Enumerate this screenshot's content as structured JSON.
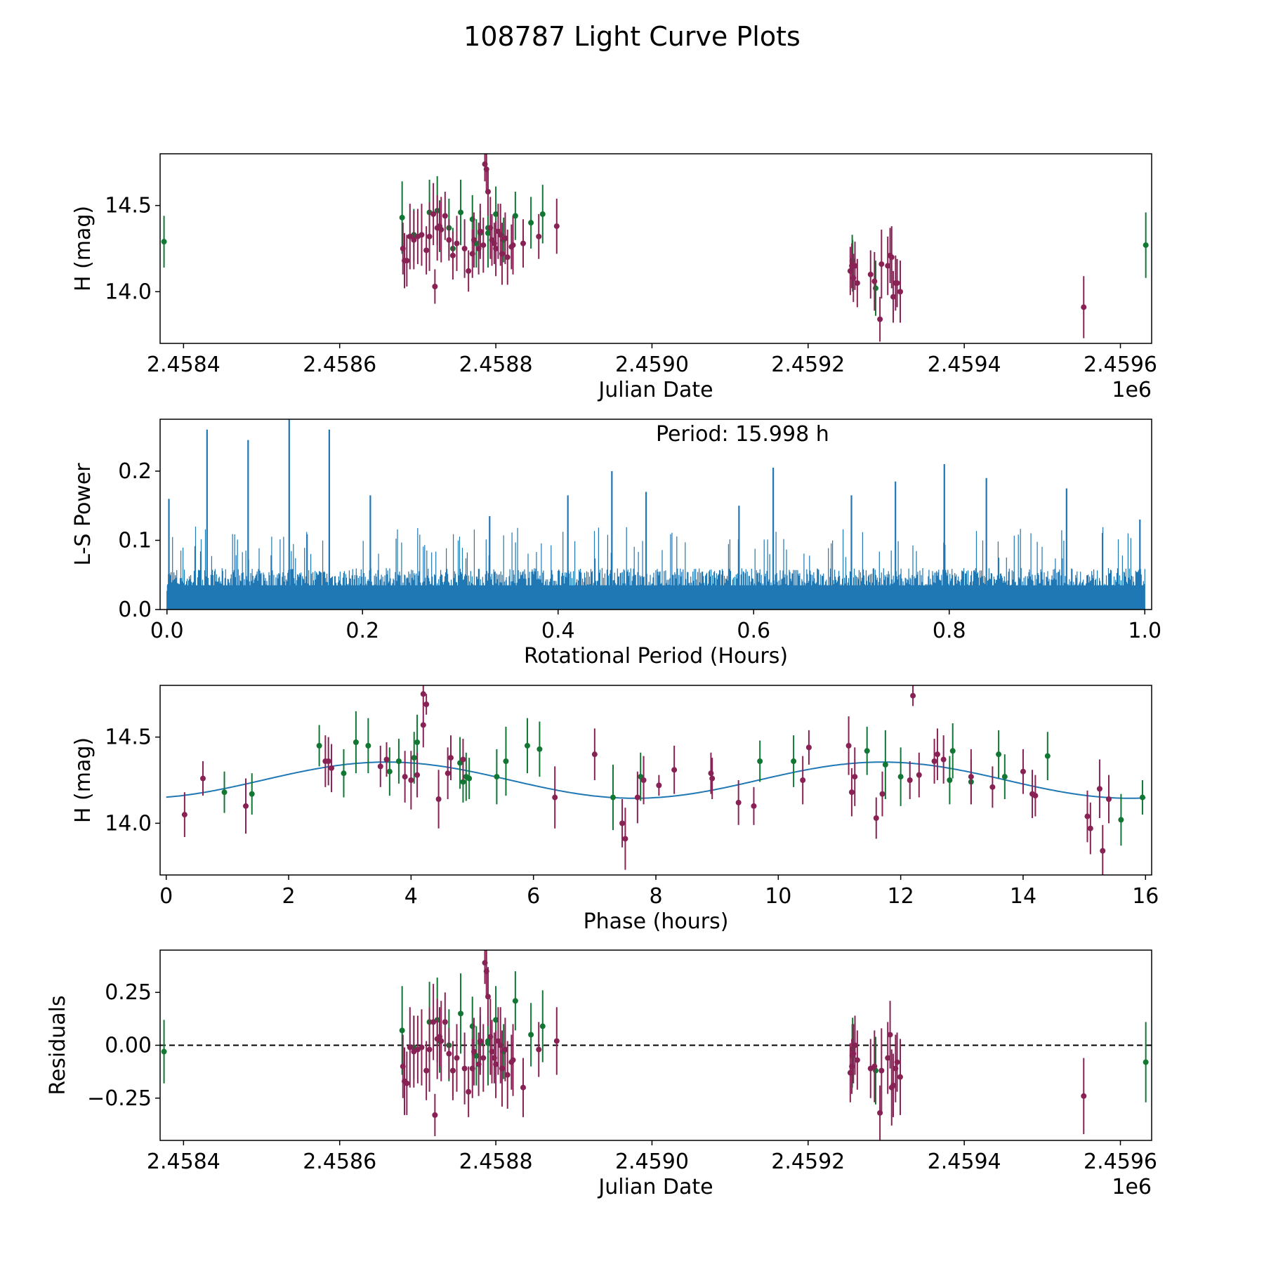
{
  "suptitle": "108787 Light Curve Plots",
  "colors": {
    "green": "#117733",
    "purple": "#882255",
    "line": "#1f77b4",
    "axis": "#000000"
  },
  "chart_data": [
    {
      "type": "scatter",
      "panel": "lightcurve",
      "xlabel": "Julian Date",
      "ylabel": "H (mag)",
      "x_offset_label": "1e6",
      "xlim": [
        2.45837,
        2.45964
      ],
      "ylim": [
        13.7,
        14.8
      ],
      "xticks": [
        2.4584,
        2.4586,
        2.4588,
        2.459,
        2.4592,
        2.4594,
        2.4596
      ],
      "xtick_labels": [
        "2.4584",
        "2.4586",
        "2.4588",
        "2.4590",
        "2.4592",
        "2.4594",
        "2.4596"
      ],
      "yticks": [
        14.0,
        14.5
      ],
      "ytick_labels": [
        "14.0",
        "14.5"
      ],
      "series": [
        {
          "name": "green",
          "color": "green",
          "x": [
            2.458375,
            2.45868,
            2.458695,
            2.458715,
            2.458725,
            2.458728,
            2.45874,
            2.458745,
            2.458755,
            2.45877,
            2.458775,
            2.45878,
            2.45879,
            2.45879,
            2.4588,
            2.45881,
            2.458825,
            2.458845,
            2.45886,
            2.4592565,
            2.459257,
            2.4592865,
            2.4596325
          ],
          "y": [
            14.29,
            14.43,
            14.33,
            14.46,
            14.47,
            14.38,
            14.37,
            14.25,
            14.46,
            14.42,
            14.28,
            14.34,
            14.34,
            14.37,
            14.45,
            14.3,
            14.44,
            14.4,
            14.45,
            14.18,
            14.15,
            14.02,
            14.27
          ],
          "err": [
            0.15,
            0.21,
            0.15,
            0.19,
            0.2,
            0.15,
            0.17,
            0.12,
            0.19,
            0.14,
            0.14,
            0.13,
            0.2,
            0.18,
            0.16,
            0.13,
            0.14,
            0.15,
            0.17,
            0.15,
            0.15,
            0.16,
            0.19
          ]
        },
        {
          "name": "purple",
          "color": "purple",
          "x": [
            2.458681,
            2.458683,
            2.458686,
            2.45869,
            2.458695,
            2.4587,
            2.458705,
            2.458711,
            2.458715,
            2.45872,
            2.458722,
            2.458725,
            2.458728,
            2.45873,
            2.458735,
            2.45874,
            2.458745,
            2.45875,
            2.45876,
            2.458765,
            2.45877,
            2.458772,
            2.458778,
            2.45878,
            2.458784,
            2.458786,
            2.458788,
            2.45879,
            2.458793,
            2.458795,
            2.458798,
            2.4588,
            2.458803,
            2.458806,
            2.458808,
            2.458812,
            2.458815,
            2.45882,
            2.458822,
            2.458835,
            2.458855,
            2.458878,
            2.459254,
            2.459256,
            2.459258,
            2.45926,
            2.459263,
            2.45928,
            2.459285,
            2.459292,
            2.459294,
            2.459302,
            2.459305,
            2.459307,
            2.459309,
            2.459312,
            2.459314,
            2.459318,
            2.459553
          ],
          "y": [
            14.25,
            14.18,
            14.18,
            14.32,
            14.3,
            14.32,
            14.33,
            14.24,
            14.32,
            14.45,
            14.03,
            14.37,
            14.38,
            14.36,
            14.44,
            14.3,
            14.21,
            14.28,
            14.25,
            14.12,
            14.22,
            14.3,
            14.25,
            14.35,
            14.27,
            14.74,
            14.71,
            14.58,
            14.37,
            14.3,
            14.28,
            14.25,
            14.35,
            14.33,
            14.22,
            14.31,
            14.2,
            14.26,
            14.27,
            14.28,
            14.32,
            14.38,
            14.12,
            14.15,
            14.08,
            14.15,
            14.05,
            14.1,
            14.06,
            13.84,
            14.16,
            14.15,
            14.21,
            14.2,
            13.97,
            14.05,
            14.05,
            14.0,
            13.91
          ],
          "err": [
            0.15,
            0.16,
            0.15,
            0.19,
            0.17,
            0.16,
            0.18,
            0.14,
            0.2,
            0.18,
            0.1,
            0.19,
            0.14,
            0.19,
            0.14,
            0.12,
            0.14,
            0.16,
            0.17,
            0.12,
            0.14,
            0.16,
            0.15,
            0.16,
            0.16,
            0.1,
            0.12,
            0.14,
            0.18,
            0.15,
            0.12,
            0.16,
            0.16,
            0.18,
            0.18,
            0.15,
            0.16,
            0.13,
            0.17,
            0.14,
            0.13,
            0.16,
            0.14,
            0.13,
            0.14,
            0.14,
            0.14,
            0.14,
            0.17,
            0.13,
            0.2,
            0.17,
            0.16,
            0.18,
            0.15,
            0.16,
            0.14,
            0.18,
            0.18
          ]
        }
      ]
    },
    {
      "type": "line",
      "panel": "periodogram",
      "xlabel": "Rotational Period (Hours)",
      "ylabel": "L-S Power",
      "annotation": "Period: 15.998 h",
      "xlim": [
        -0.007,
        1.007
      ],
      "ylim": [
        0,
        0.275
      ],
      "xticks": [
        0,
        0.2,
        0.4,
        0.6,
        0.8,
        1.0
      ],
      "xtick_labels": [
        "0.0",
        "0.2",
        "0.4",
        "0.6",
        "0.8",
        "1.0"
      ],
      "yticks": [
        0,
        0.1,
        0.2
      ],
      "ytick_labels": [
        "0.0",
        "0.1",
        "0.2"
      ],
      "typical_peak": 0.06,
      "peaks": [
        {
          "x": 0.002,
          "y": 0.16
        },
        {
          "x": 0.041,
          "y": 0.26
        },
        {
          "x": 0.083,
          "y": 0.245
        },
        {
          "x": 0.125,
          "y": 0.275
        },
        {
          "x": 0.166,
          "y": 0.26
        },
        {
          "x": 0.208,
          "y": 0.165
        },
        {
          "x": 0.33,
          "y": 0.135
        },
        {
          "x": 0.41,
          "y": 0.165
        },
        {
          "x": 0.455,
          "y": 0.2
        },
        {
          "x": 0.49,
          "y": 0.17
        },
        {
          "x": 0.585,
          "y": 0.15
        },
        {
          "x": 0.62,
          "y": 0.205
        },
        {
          "x": 0.7,
          "y": 0.165
        },
        {
          "x": 0.745,
          "y": 0.185
        },
        {
          "x": 0.795,
          "y": 0.21
        },
        {
          "x": 0.838,
          "y": 0.19
        },
        {
          "x": 0.92,
          "y": 0.175
        },
        {
          "x": 0.995,
          "y": 0.13
        }
      ]
    },
    {
      "type": "scatter",
      "panel": "phased",
      "xlabel": "Phase (hours)",
      "ylabel": "H (mag)",
      "xlim": [
        -0.1,
        16.1
      ],
      "ylim": [
        13.7,
        14.8
      ],
      "xticks": [
        0,
        2,
        4,
        6,
        8,
        10,
        12,
        14,
        16
      ],
      "xtick_labels": [
        "0",
        "2",
        "4",
        "6",
        "8",
        "10",
        "12",
        "14",
        "16"
      ],
      "yticks": [
        14.0,
        14.5
      ],
      "ytick_labels": [
        "14.0",
        "14.5"
      ],
      "fit": {
        "type": "sinusoid",
        "mean": 14.25,
        "amplitude": 0.105,
        "period_hours": 8.1,
        "peak_phase": 3.6,
        "color": "line"
      },
      "series": [
        {
          "name": "green",
          "color": "green",
          "x": [
            0.95,
            1.4,
            2.5,
            2.9,
            3.1,
            3.3,
            3.65,
            3.8,
            4.05,
            4.1,
            4.8,
            4.85,
            4.9,
            4.95,
            5.4,
            5.55,
            5.9,
            6.1,
            7.3,
            7.75,
            9.7,
            10.25,
            11.45,
            11.75,
            12.0,
            12.8,
            12.85,
            13.15,
            13.6,
            13.7,
            14.4,
            15.6,
            15.95
          ],
          "y": [
            14.18,
            14.17,
            14.45,
            14.29,
            14.47,
            14.45,
            14.3,
            14.36,
            14.38,
            14.47,
            14.35,
            14.24,
            14.27,
            14.26,
            14.27,
            14.36,
            14.45,
            14.43,
            14.15,
            14.27,
            14.36,
            14.36,
            14.42,
            14.34,
            14.27,
            14.25,
            14.42,
            14.24,
            14.4,
            14.27,
            14.39,
            14.02,
            14.15
          ],
          "err": [
            0.12,
            0.12,
            0.12,
            0.14,
            0.18,
            0.16,
            0.14,
            0.13,
            0.15,
            0.16,
            0.15,
            0.12,
            0.14,
            0.12,
            0.16,
            0.2,
            0.16,
            0.16,
            0.19,
            0.14,
            0.12,
            0.15,
            0.14,
            0.2,
            0.17,
            0.14,
            0.16,
            0.13,
            0.14,
            0.13,
            0.14,
            0.15,
            0.1
          ]
        },
        {
          "name": "purple",
          "color": "purple",
          "x": [
            0.3,
            0.6,
            1.3,
            2.6,
            2.65,
            2.7,
            3.5,
            3.6,
            3.9,
            4.0,
            4.1,
            4.2,
            4.25,
            4.2,
            4.45,
            4.6,
            4.65,
            4.85,
            6.35,
            7.0,
            7.45,
            7.5,
            7.7,
            7.8,
            8.05,
            8.3,
            8.9,
            8.92,
            9.35,
            9.6,
            10.4,
            10.5,
            11.15,
            11.2,
            11.25,
            11.6,
            11.7,
            12.15,
            12.2,
            12.3,
            12.55,
            12.6,
            12.7,
            13.15,
            13.5,
            14.0,
            14.15,
            14.2,
            15.05,
            15.1,
            15.25,
            15.3,
            15.4
          ],
          "y": [
            14.05,
            14.26,
            14.1,
            14.36,
            14.36,
            14.32,
            14.33,
            14.37,
            14.27,
            14.25,
            14.28,
            14.57,
            14.69,
            14.75,
            14.14,
            14.29,
            14.38,
            14.37,
            14.15,
            14.4,
            14.0,
            13.91,
            14.15,
            14.25,
            14.22,
            14.31,
            14.29,
            14.26,
            14.12,
            14.1,
            14.25,
            14.44,
            14.45,
            14.18,
            14.27,
            14.03,
            14.17,
            14.25,
            14.74,
            14.28,
            14.36,
            14.4,
            14.37,
            14.27,
            14.21,
            14.3,
            14.17,
            14.16,
            14.04,
            13.97,
            14.2,
            13.84,
            14.14
          ],
          "err": [
            0.13,
            0.1,
            0.16,
            0.15,
            0.14,
            0.14,
            0.12,
            0.1,
            0.15,
            0.17,
            0.13,
            0.13,
            0.06,
            0.06,
            0.17,
            0.15,
            0.13,
            0.12,
            0.18,
            0.15,
            0.14,
            0.18,
            0.15,
            0.14,
            0.06,
            0.14,
            0.12,
            0.12,
            0.13,
            0.11,
            0.14,
            0.1,
            0.17,
            0.14,
            0.17,
            0.12,
            0.13,
            0.11,
            0.06,
            0.13,
            0.13,
            0.15,
            0.14,
            0.16,
            0.12,
            0.13,
            0.14,
            0.12,
            0.15,
            0.15,
            0.17,
            0.15,
            0.14
          ]
        }
      ]
    },
    {
      "type": "scatter",
      "panel": "residuals",
      "xlabel": "Julian Date",
      "ylabel": "Residuals",
      "x_offset_label": "1e6",
      "xlim": [
        2.45837,
        2.45964
      ],
      "ylim": [
        -0.45,
        0.45
      ],
      "xticks": [
        2.4584,
        2.4586,
        2.4588,
        2.459,
        2.4592,
        2.4594,
        2.4596
      ],
      "xtick_labels": [
        "2.4584",
        "2.4586",
        "2.4588",
        "2.4590",
        "2.4592",
        "2.4594",
        "2.4596"
      ],
      "yticks": [
        -0.25,
        0.0,
        0.25
      ],
      "ytick_labels": [
        "−0.25",
        "0.00",
        "0.25"
      ],
      "zero_line": 0,
      "series": [
        {
          "name": "green",
          "color": "green",
          "x": [
            2.458375,
            2.45868,
            2.458695,
            2.458715,
            2.458725,
            2.458728,
            2.45874,
            2.458745,
            2.458755,
            2.45877,
            2.458775,
            2.45878,
            2.45879,
            2.45879,
            2.4588,
            2.45881,
            2.458825,
            2.458845,
            2.45886,
            2.4592565,
            2.459257,
            2.4592865,
            2.4596325
          ],
          "y": [
            -0.03,
            0.07,
            -0.01,
            0.11,
            0.12,
            0.02,
            0.0,
            -0.12,
            0.15,
            0.09,
            -0.05,
            0.01,
            0.01,
            0.02,
            0.12,
            -0.03,
            0.21,
            0.05,
            0.09,
            -0.05,
            -0.02,
            -0.12,
            -0.08
          ],
          "err": [
            0.15,
            0.21,
            0.15,
            0.19,
            0.2,
            0.15,
            0.17,
            0.12,
            0.19,
            0.14,
            0.14,
            0.13,
            0.2,
            0.18,
            0.16,
            0.13,
            0.14,
            0.15,
            0.17,
            0.15,
            0.15,
            0.16,
            0.19
          ]
        },
        {
          "name": "purple",
          "color": "purple",
          "x": [
            2.458681,
            2.458683,
            2.458686,
            2.45869,
            2.458695,
            2.4587,
            2.458705,
            2.458711,
            2.458715,
            2.45872,
            2.458722,
            2.458725,
            2.458728,
            2.45873,
            2.458735,
            2.45874,
            2.458745,
            2.45875,
            2.45876,
            2.458765,
            2.45877,
            2.458772,
            2.458778,
            2.45878,
            2.458784,
            2.458786,
            2.458788,
            2.45879,
            2.458793,
            2.458795,
            2.458798,
            2.4588,
            2.458803,
            2.458806,
            2.458808,
            2.458812,
            2.458815,
            2.45882,
            2.458822,
            2.458835,
            2.458855,
            2.458878,
            2.459254,
            2.459256,
            2.459258,
            2.45926,
            2.459263,
            2.45928,
            2.459285,
            2.459292,
            2.459294,
            2.459302,
            2.459305,
            2.459307,
            2.459309,
            2.459312,
            2.459314,
            2.459318,
            2.459553
          ],
          "y": [
            -0.1,
            -0.17,
            -0.18,
            -0.01,
            -0.03,
            -0.02,
            -0.01,
            -0.12,
            -0.02,
            0.11,
            -0.33,
            0.03,
            0.04,
            0.02,
            0.11,
            -0.04,
            -0.12,
            -0.06,
            -0.11,
            -0.22,
            -0.11,
            -0.03,
            -0.09,
            0.02,
            -0.06,
            0.39,
            0.35,
            0.23,
            0.04,
            -0.03,
            -0.06,
            -0.09,
            0.02,
            0.0,
            -0.11,
            -0.02,
            -0.14,
            -0.08,
            -0.07,
            -0.2,
            -0.02,
            0.02,
            -0.13,
            -0.1,
            -0.04,
            0.0,
            -0.07,
            -0.11,
            -0.1,
            -0.32,
            -0.12,
            -0.06,
            0.05,
            -0.2,
            -0.19,
            -0.11,
            -0.08,
            -0.15,
            -0.24
          ],
          "err": [
            0.15,
            0.16,
            0.15,
            0.19,
            0.17,
            0.16,
            0.18,
            0.14,
            0.2,
            0.18,
            0.1,
            0.19,
            0.14,
            0.19,
            0.14,
            0.12,
            0.14,
            0.16,
            0.17,
            0.12,
            0.14,
            0.16,
            0.15,
            0.16,
            0.16,
            0.1,
            0.12,
            0.14,
            0.18,
            0.15,
            0.12,
            0.16,
            0.16,
            0.18,
            0.18,
            0.15,
            0.16,
            0.13,
            0.17,
            0.14,
            0.13,
            0.16,
            0.14,
            0.13,
            0.14,
            0.14,
            0.14,
            0.14,
            0.17,
            0.13,
            0.2,
            0.17,
            0.16,
            0.18,
            0.15,
            0.16,
            0.14,
            0.18,
            0.18
          ]
        }
      ]
    }
  ]
}
